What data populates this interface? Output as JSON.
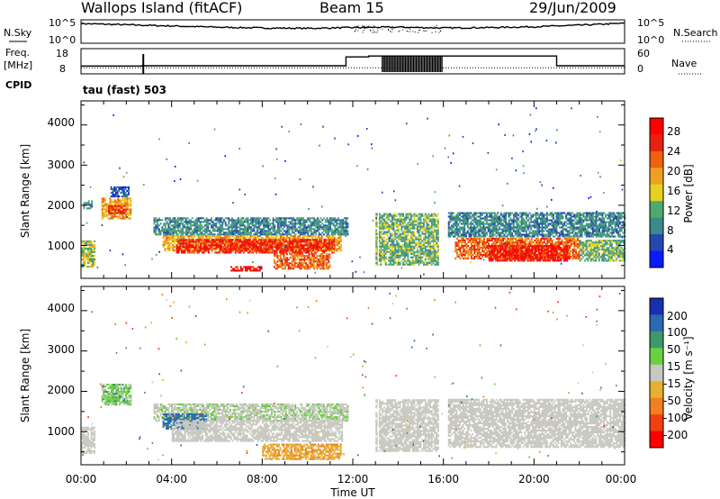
{
  "header": {
    "station": "Wallops Island (fitACF)",
    "beam": "Beam 15",
    "date": "29/Jun/2009"
  },
  "side_labels": {
    "nsky": "N.Sky",
    "freq": "Freq.",
    "mhz": "[MHz]",
    "cpid": "CPID",
    "nsearch": "N.Search",
    "nave": "Nave",
    "cpid_value": "tau (fast) 503"
  },
  "nsky_panel": {
    "left_ticks": [
      "10^5",
      "10^0"
    ],
    "right_ticks": [
      "10^5",
      "10^0"
    ]
  },
  "freq_panel": {
    "left_ticks": [
      "18",
      "8"
    ],
    "right_ticks": [
      "60",
      "0"
    ]
  },
  "x_axis": {
    "label": "Time UT",
    "ticks": [
      "00:00",
      "04:00",
      "08:00",
      "12:00",
      "16:00",
      "20:00",
      "00:00"
    ]
  },
  "power_panel": {
    "ylabel": "Slant Range [km]",
    "yticks": [
      "4000",
      "3000",
      "2000",
      "1000"
    ],
    "colorbar_label": "Power [dB]",
    "colorbar_ticks": [
      "28",
      "24",
      "20",
      "16",
      "12",
      "8",
      "4"
    ]
  },
  "velocity_panel": {
    "ylabel": "Slant Range [km]",
    "yticks": [
      "4000",
      "3000",
      "2000",
      "1000"
    ],
    "colorbar_label": "Velocity [m s⁻¹]",
    "colorbar_ticks": [
      "200",
      "100",
      "50",
      "15",
      "-15",
      "-50",
      "-100",
      "-200"
    ]
  },
  "colors": {
    "power": [
      "#0a1aff",
      "#2646b0",
      "#3a8a8a",
      "#4ea870",
      "#e8d020",
      "#f0a020",
      "#f06010",
      "#e82010",
      "#ff0000"
    ],
    "velocity": [
      "#1830b0",
      "#2a6ab0",
      "#3a9a6a",
      "#6ad040",
      "#c8c8c0",
      "#e8b030",
      "#f08020",
      "#f04010",
      "#ff0000"
    ]
  },
  "chart_data": [
    {
      "type": "line",
      "title": "N.Sky / N.Search",
      "x_range_hours": [
        0,
        24
      ],
      "description_values": {
        "time_hours": [
          0,
          2,
          4,
          6,
          8,
          10,
          12,
          14,
          16,
          18,
          20,
          22,
          24
        ],
        "log_nsky": [
          4.5,
          4.2,
          3.9,
          3.6,
          3.4,
          3.3,
          3.5,
          3.6,
          3.4,
          3.5,
          3.7,
          4.1,
          4.6
        ]
      }
    },
    {
      "type": "line",
      "title": "Freq. / Nave",
      "x_range_hours": [
        0,
        24
      ],
      "freq_mhz_steps": [
        {
          "start": 0.0,
          "end": 2.7,
          "value": 10.8
        },
        {
          "start": 2.7,
          "end": 11.7,
          "value": 10.9
        },
        {
          "start": 11.7,
          "end": 12.7,
          "value": 15.0
        },
        {
          "start": 12.7,
          "end": 21.0,
          "value": 15.4
        },
        {
          "start": 21.0,
          "end": 24.0,
          "value": 10.9
        }
      ],
      "nave_level": 12
    },
    {
      "type": "heatmap",
      "ylabel": "Slant Range [km]",
      "xlabel": "Time UT",
      "colorbar": "Power [dB]",
      "x_range_hours": [
        0,
        24
      ],
      "ylim": [
        180,
        4600
      ],
      "zlim": [
        0,
        30
      ],
      "regions": [
        {
          "t0": 0.0,
          "t1": 0.6,
          "r0": 450,
          "r1": 1100,
          "p": 14
        },
        {
          "t0": 0.1,
          "t1": 0.5,
          "r0": 1900,
          "r1": 2100,
          "p": 10
        },
        {
          "t0": 0.9,
          "t1": 2.2,
          "r0": 1650,
          "r1": 2150,
          "p": 18
        },
        {
          "t0": 1.2,
          "t1": 2.0,
          "r0": 1780,
          "r1": 2000,
          "p": 24
        },
        {
          "t0": 1.3,
          "t1": 2.1,
          "r0": 2200,
          "r1": 2450,
          "p": 6
        },
        {
          "t0": 3.2,
          "t1": 11.8,
          "r0": 1250,
          "r1": 1700,
          "p": 9
        },
        {
          "t0": 3.6,
          "t1": 11.5,
          "r0": 850,
          "r1": 1250,
          "p": 18
        },
        {
          "t0": 4.2,
          "t1": 11.2,
          "r0": 800,
          "r1": 1150,
          "p": 26
        },
        {
          "t0": 8.5,
          "t1": 11.0,
          "r0": 400,
          "r1": 800,
          "p": 22
        },
        {
          "t0": 6.6,
          "t1": 8.0,
          "r0": 350,
          "r1": 450,
          "p": 28
        },
        {
          "t0": 13.0,
          "t1": 15.8,
          "r0": 500,
          "r1": 1800,
          "p": 12
        },
        {
          "t0": 16.2,
          "t1": 24.0,
          "r0": 1200,
          "r1": 1800,
          "p": 9
        },
        {
          "t0": 16.5,
          "t1": 22.0,
          "r0": 650,
          "r1": 1150,
          "p": 22
        },
        {
          "t0": 18.0,
          "t1": 21.5,
          "r0": 600,
          "r1": 1000,
          "p": 27
        },
        {
          "t0": 22.0,
          "t1": 24.0,
          "r0": 600,
          "r1": 1100,
          "p": 12
        }
      ]
    },
    {
      "type": "heatmap",
      "ylabel": "Slant Range [km]",
      "xlabel": "Time UT",
      "colorbar": "Velocity [m s⁻¹]",
      "x_range_hours": [
        0,
        24
      ],
      "ylim": [
        180,
        4600
      ],
      "zlim": [
        -250,
        250
      ],
      "regions": [
        {
          "t0": 0.0,
          "t1": 0.6,
          "r0": 450,
          "r1": 1100,
          "v": 0
        },
        {
          "t0": 0.9,
          "t1": 2.2,
          "r0": 1650,
          "r1": 2150,
          "v": 30
        },
        {
          "t0": 3.2,
          "t1": 11.8,
          "r0": 1250,
          "r1": 1700,
          "v": 10
        },
        {
          "t0": 3.6,
          "t1": 5.5,
          "r0": 1050,
          "r1": 1450,
          "v": 120
        },
        {
          "t0": 4.0,
          "t1": 11.5,
          "r0": 750,
          "r1": 1250,
          "v": 0
        },
        {
          "t0": 8.0,
          "t1": 11.5,
          "r0": 300,
          "r1": 700,
          "v": -40
        },
        {
          "t0": 13.0,
          "t1": 15.8,
          "r0": 500,
          "r1": 1800,
          "v": 0
        },
        {
          "t0": 16.2,
          "t1": 24.0,
          "r0": 600,
          "r1": 1800,
          "v": 0
        }
      ]
    }
  ]
}
